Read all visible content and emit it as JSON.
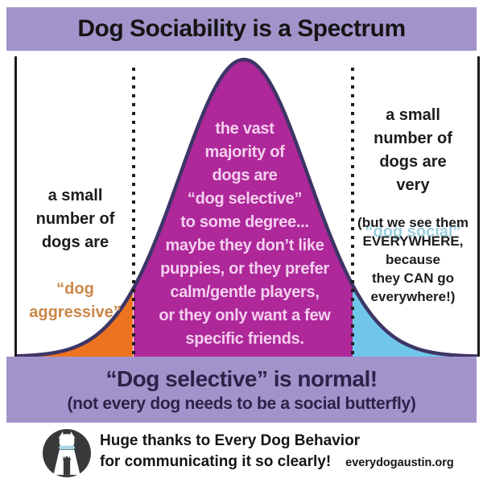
{
  "title": "Dog Sociability is a Spectrum",
  "colors": {
    "band_bg": "#a294cb",
    "banner_text": "#2e2248",
    "curve_stroke": "#3d3566",
    "dots": "#1f1f1f",
    "aggressive_fill": "#ee7320",
    "selective_fill": "#ae289a",
    "social_fill": "#70c6e8",
    "aggressive_text": "#cb8747",
    "social_text": "#9ccfdd",
    "selective_text": "#f4cfee",
    "logo_circle": "#39393b",
    "logo_collar": "#a9d6e5"
  },
  "spectrum": {
    "type": "bell-curve infographic",
    "left_region": {
      "name": "dog aggressive",
      "label_black": "a small\nnumber of\ndogs are",
      "label_colored": "“dog\naggressive”"
    },
    "middle_region": {
      "name": "dog selective",
      "label": "the vast\nmajority of\ndogs are\n“dog selective”\nto some degree...\nmaybe they don’t like\npuppies, or they prefer\ncalm/gentle players,\nor they only want a few\nspecific friends."
    },
    "right_region": {
      "name": "dog social",
      "label_black": "a small\nnumber of\ndogs are\nvery",
      "label_colored": "“dog social”",
      "label_note": "(but we see them\nEVERYWHERE,\nbecause\nthey CAN go\neverywhere!)"
    }
  },
  "banner": {
    "line1": "“Dog selective” is normal!",
    "line2": "(not every dog needs to be a social butterfly)"
  },
  "footer": {
    "line1": "Huge thanks to Every Dog Behavior",
    "line2": "for communicating it so clearly!",
    "org": "everydogaustin.org"
  }
}
